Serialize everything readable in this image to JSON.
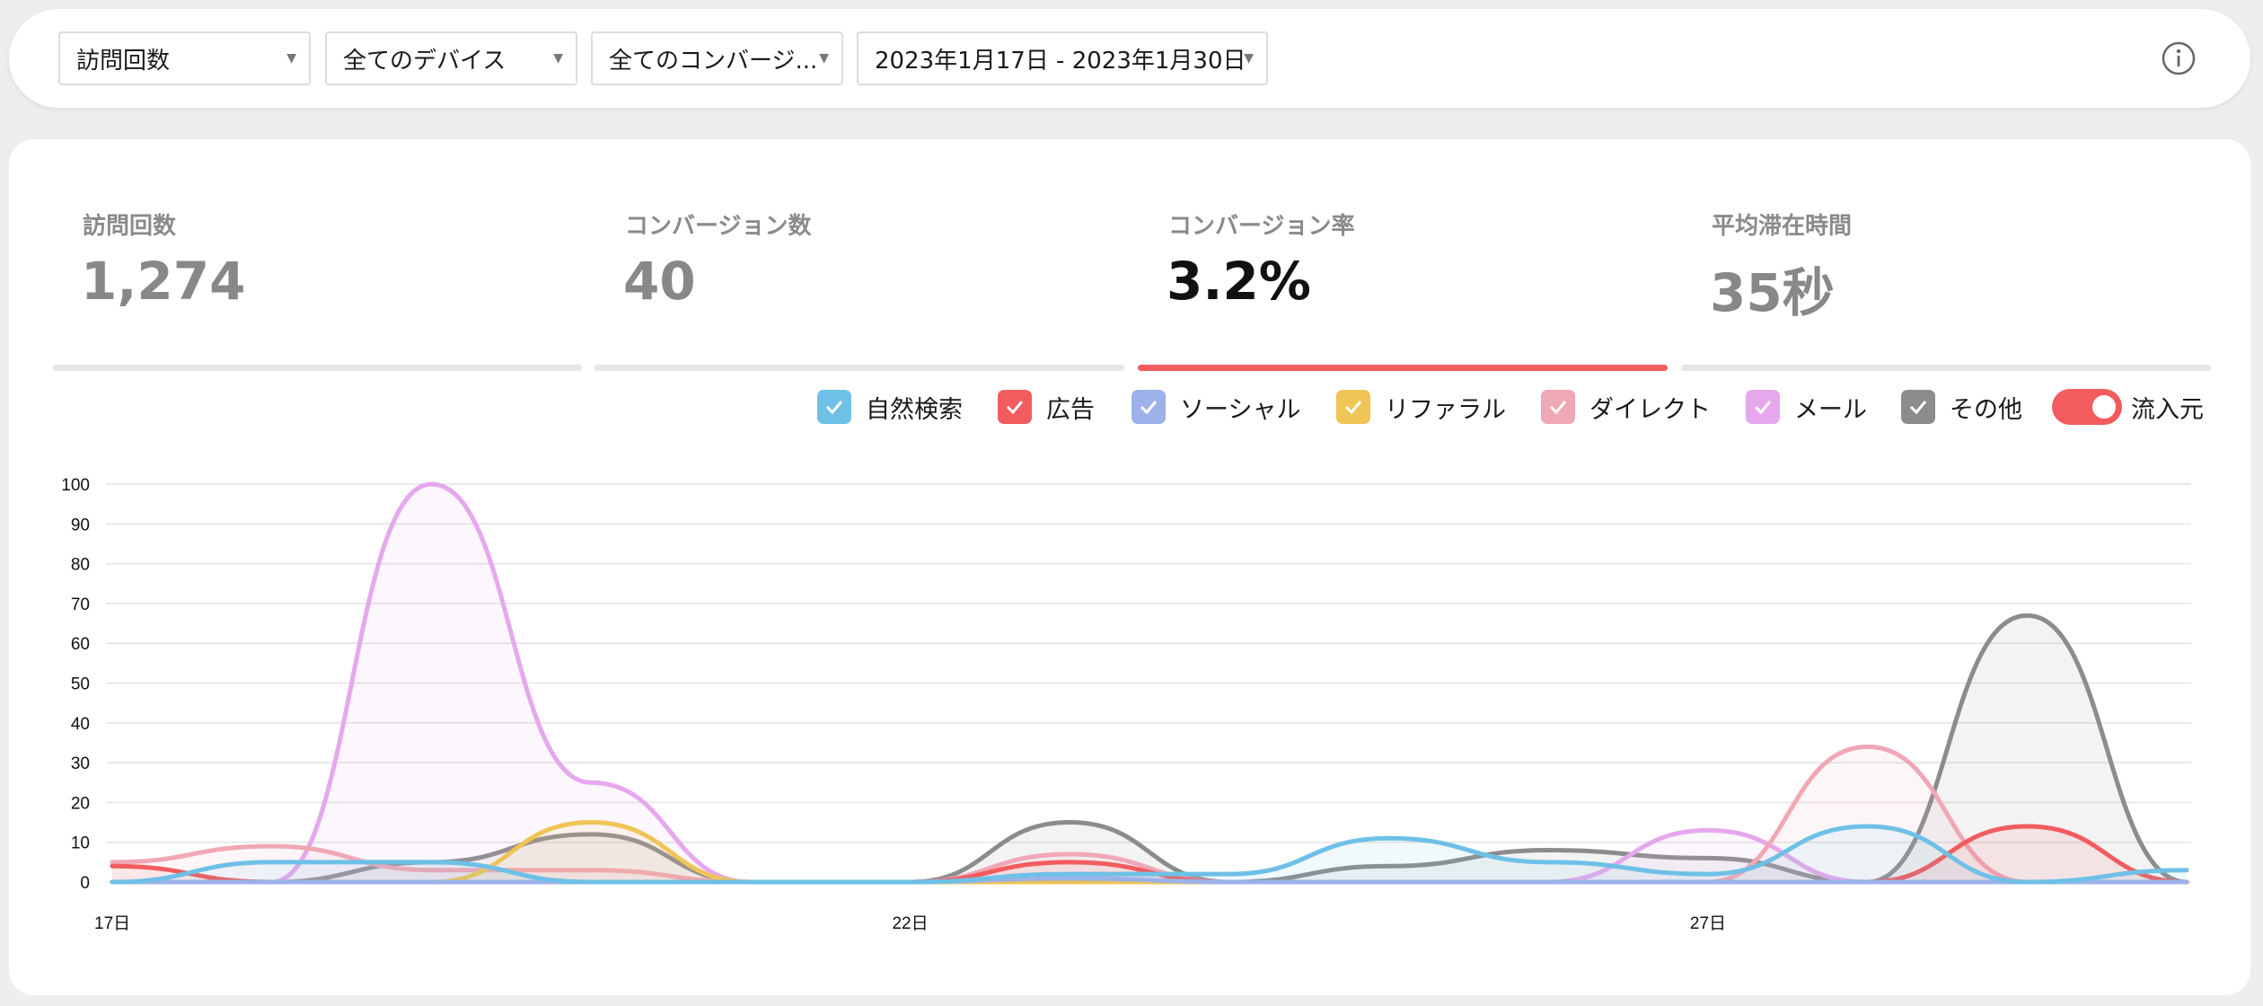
{
  "filters": {
    "metric": "訪問回数",
    "device": "全てのデバイス",
    "conversion": "全てのコンバージ...",
    "date_range": "2023年1月17日 - 2023年1月30日"
  },
  "icons": {
    "info": "info-circle-icon",
    "caret": "caret-down-icon",
    "check": "check-icon"
  },
  "kpis": [
    {
      "label": "訪問回数",
      "value": "1,274",
      "active": false
    },
    {
      "label": "コンバージョン数",
      "value": "40",
      "active": false
    },
    {
      "label": "コンバージョン率",
      "value": "3.2%",
      "active": true
    },
    {
      "label": "平均滞在時間",
      "value": "35秒",
      "active": false
    }
  ],
  "legend": [
    {
      "label": "自然検索",
      "color": "#6ec0e6"
    },
    {
      "label": "広告",
      "color": "#f25c5f"
    },
    {
      "label": "ソーシャル",
      "color": "#9fb1ea"
    },
    {
      "label": "リファラル",
      "color": "#f0c455"
    },
    {
      "label": "ダイレクト",
      "color": "#f0a7b6"
    },
    {
      "label": "メール",
      "color": "#e6a7ef"
    },
    {
      "label": "その他",
      "color": "#8c8c8c"
    }
  ],
  "toggle": {
    "label": "流入元",
    "on": true,
    "color": "#f25c5f"
  },
  "chart_data": {
    "type": "area",
    "x": [
      "17日",
      "18日",
      "19日",
      "20日",
      "21日",
      "22日",
      "23日",
      "24日",
      "25日",
      "26日",
      "27日",
      "28日",
      "29日",
      "30日"
    ],
    "x_tick_labels": [
      "17日",
      "22日",
      "27日"
    ],
    "ylim": [
      0,
      100
    ],
    "y_ticks": [
      0,
      10,
      20,
      30,
      40,
      50,
      60,
      70,
      80,
      90,
      100
    ],
    "grid": true,
    "series": [
      {
        "name": "その他",
        "color": "#8c8c8c",
        "values": [
          0,
          0,
          5,
          12,
          0,
          0,
          15,
          0,
          4,
          8,
          6,
          0,
          67,
          0
        ]
      },
      {
        "name": "メール",
        "color": "#e6a7ef",
        "values": [
          0,
          0,
          100,
          25,
          0,
          0,
          0,
          0,
          0,
          0,
          13,
          0,
          0,
          0
        ]
      },
      {
        "name": "ダイレクト",
        "color": "#f0a7b6",
        "values": [
          5,
          9,
          3,
          3,
          0,
          0,
          7,
          0,
          0,
          0,
          0,
          34,
          0,
          0
        ]
      },
      {
        "name": "リファラル",
        "color": "#f0c455",
        "values": [
          0,
          0,
          0,
          15,
          0,
          0,
          0,
          0,
          0,
          0,
          0,
          0,
          0,
          0
        ]
      },
      {
        "name": "広告",
        "color": "#f25c5f",
        "values": [
          4,
          0,
          0,
          0,
          0,
          0,
          5,
          0,
          0,
          0,
          0,
          0,
          14,
          0
        ]
      },
      {
        "name": "ソーシャル",
        "color": "#9fb1ea",
        "values": [
          0,
          0,
          0,
          0,
          0,
          0,
          1,
          0,
          0,
          0,
          0,
          0,
          0,
          0
        ]
      },
      {
        "name": "自然検索",
        "color": "#6ec0e6",
        "values": [
          0,
          5,
          5,
          0,
          0,
          0,
          2,
          2,
          11,
          5,
          2,
          14,
          0,
          3
        ]
      }
    ]
  }
}
